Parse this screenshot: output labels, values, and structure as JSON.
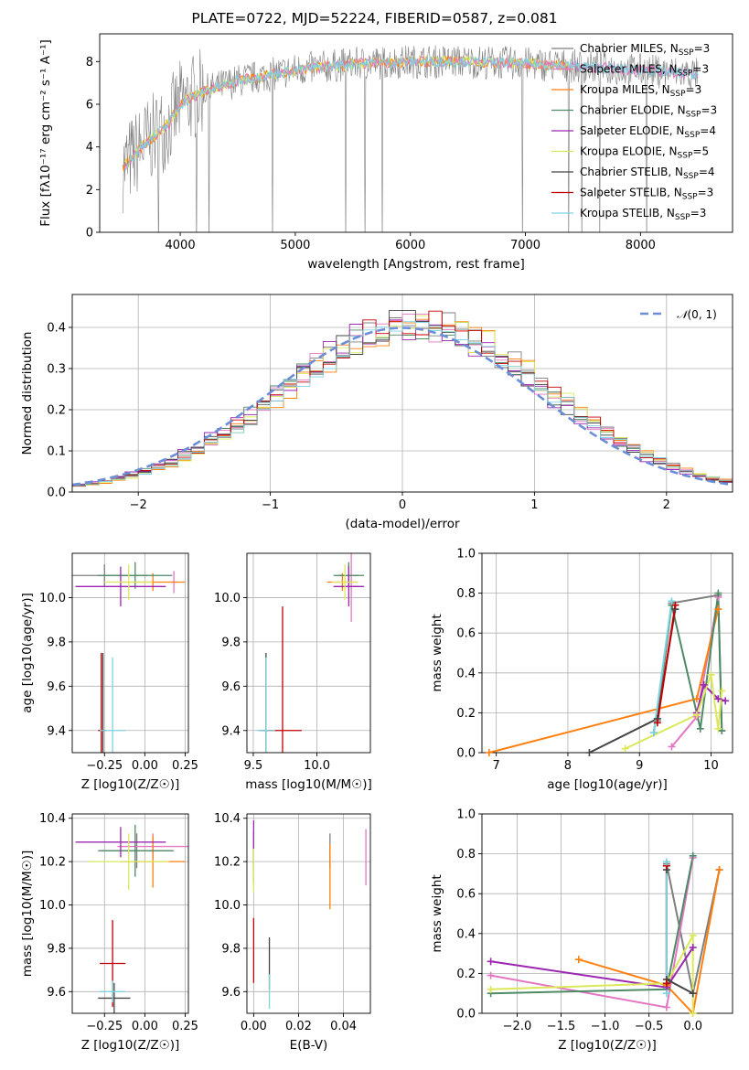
{
  "figure": {
    "title": "PLATE=0722, MJD=52224, FIBERID=0587, z=0.081",
    "models": [
      {
        "name": "Chabrier MILES",
        "nssp": "3",
        "color": "#7f7f7f"
      },
      {
        "name": "Salpeter MILES",
        "nssp": "3",
        "color": "#e377c2"
      },
      {
        "name": "Kroupa MILES",
        "nssp": "3",
        "color": "#ff7f0e"
      },
      {
        "name": "Chabrier ELODIE",
        "nssp": "3",
        "color": "#4e8a66"
      },
      {
        "name": "Salpeter ELODIE",
        "nssp": "4",
        "color": "#9b27b0"
      },
      {
        "name": "Kroupa ELODIE",
        "nssp": "5",
        "color": "#dbe85a"
      },
      {
        "name": "Chabrier STELIB",
        "nssp": "4",
        "color": "#454545"
      },
      {
        "name": "Salpeter STELIB",
        "nssp": "3",
        "color": "#c00000"
      },
      {
        "name": "Kroupa STELIB",
        "nssp": "3",
        "color": "#7ed3e0"
      }
    ]
  },
  "chart_data": [
    {
      "id": "spectrum",
      "type": "line",
      "xlabel": "wavelength [Angstrom, rest frame]",
      "ylabel": "Flux [fλ10⁻¹⁷ erg cm⁻² s⁻¹ A⁻¹]",
      "xlim": [
        3300,
        8800
      ],
      "ylim": [
        0,
        9.3
      ],
      "xticks": [
        "4000",
        "5000",
        "6000",
        "7000",
        "8000"
      ],
      "yticks": [
        "0",
        "2",
        "4",
        "6",
        "8"
      ],
      "legend": "right",
      "continuum": [
        [
          3500,
          3.0
        ],
        [
          3600,
          3.6
        ],
        [
          3700,
          4.2
        ],
        [
          3800,
          4.6
        ],
        [
          3900,
          5.1
        ],
        [
          4000,
          6.0
        ],
        [
          4200,
          6.6
        ],
        [
          4500,
          7.1
        ],
        [
          5000,
          7.6
        ],
        [
          5500,
          7.9
        ],
        [
          6000,
          8.0
        ],
        [
          6500,
          8.0
        ],
        [
          7000,
          7.9
        ],
        [
          7400,
          7.8
        ],
        [
          8000,
          7.6
        ],
        [
          8500,
          7.4
        ]
      ]
    },
    {
      "id": "residual-histogram",
      "type": "bar",
      "xlabel": "(data-model)/error",
      "ylabel": "Normed distribution",
      "xlim": [
        -2.5,
        2.5
      ],
      "ylim": [
        0,
        0.48
      ],
      "xticks": [
        "−2",
        "−1",
        "0",
        "1",
        "2"
      ],
      "yticks": [
        "0.0",
        "0.1",
        "0.2",
        "0.3",
        "0.4"
      ],
      "bin_width": 0.1,
      "reference": {
        "name": "N(0,1)",
        "mean": 0,
        "sigma": 1,
        "color": "#6c8ed8"
      },
      "legend": "top-right"
    },
    {
      "id": "age-vs-Z",
      "type": "scatter",
      "xlabel": "Z [log10(Z/Z☉)]",
      "ylabel": "age [log10(age/yr)]",
      "xlim": [
        -0.45,
        0.27
      ],
      "ylim": [
        9.3,
        10.2
      ],
      "xticks": [
        "−0.25",
        "0.00",
        "0.25"
      ],
      "yticks": [
        "9.4",
        "9.6",
        "9.8",
        "10.0"
      ],
      "points": [
        {
          "x": -0.25,
          "y": 10.1,
          "xerr": 0.27,
          "yerr": 0.05,
          "c": 0
        },
        {
          "x": 0.18,
          "y": 10.07,
          "xerr": 0.02,
          "yerr": 0.05,
          "c": 1
        },
        {
          "x": 0.05,
          "y": 10.07,
          "xerr": 0.2,
          "yerr": 0.04,
          "c": 2
        },
        {
          "x": -0.06,
          "y": 10.1,
          "xerr": 0.23,
          "yerr": 0.06,
          "c": 3
        },
        {
          "x": -0.15,
          "y": 10.05,
          "xerr": 0.28,
          "yerr": 0.09,
          "c": 4
        },
        {
          "x": -0.1,
          "y": 10.07,
          "xerr": 0.15,
          "yerr": 0.08,
          "c": 5
        },
        {
          "x": -0.26,
          "y": 9.4,
          "xerr": 0.02,
          "yerr": 0.35,
          "c": 6
        },
        {
          "x": -0.27,
          "y": 9.4,
          "xerr": 0.02,
          "yerr": 0.35,
          "c": 7
        },
        {
          "x": -0.2,
          "y": 9.4,
          "xerr": 0.08,
          "yerr": 0.33,
          "c": 8
        }
      ]
    },
    {
      "id": "age-vs-mass",
      "type": "scatter",
      "xlabel": "mass [log10(M/M☉)]",
      "ylabel": "",
      "xlim": [
        9.45,
        10.42
      ],
      "ylim": [
        9.3,
        10.2
      ],
      "xticks": [
        "9.5",
        "10.0"
      ],
      "yticks": [
        "9.4",
        "9.6",
        "9.8",
        "10.0"
      ],
      "points": [
        {
          "x": 10.25,
          "y": 10.1,
          "xerr": 0.08,
          "yerr": 0.05,
          "c": 0
        },
        {
          "x": 10.27,
          "y": 10.05,
          "xerr": 0.06,
          "yerr": 0.16,
          "c": 1
        },
        {
          "x": 10.2,
          "y": 10.07,
          "xerr": 0.12,
          "yerr": 0.04,
          "c": 2
        },
        {
          "x": 10.25,
          "y": 10.1,
          "xerr": 0.12,
          "yerr": 0.06,
          "c": 3
        },
        {
          "x": 10.25,
          "y": 10.05,
          "xerr": 0.12,
          "yerr": 0.09,
          "c": 4
        },
        {
          "x": 10.22,
          "y": 10.07,
          "xerr": 0.1,
          "yerr": 0.08,
          "c": 5
        },
        {
          "x": 9.6,
          "y": 9.4,
          "xerr": 0.05,
          "yerr": 0.35,
          "c": 6
        },
        {
          "x": 9.73,
          "y": 9.4,
          "xerr": 0.15,
          "yerr": 0.56,
          "c": 7
        },
        {
          "x": 9.6,
          "y": 9.4,
          "xerr": 0.07,
          "yerr": 0.33,
          "c": 8
        }
      ]
    },
    {
      "id": "mass-weight-vs-age",
      "type": "line",
      "xlabel": "age [log10(age/yr)]",
      "ylabel": "mass weight",
      "xlim": [
        6.8,
        10.3
      ],
      "ylim": [
        0,
        1.0
      ],
      "xticks": [
        "7",
        "8",
        "9",
        "10"
      ],
      "yticks": [
        "0.0",
        "0.2",
        "0.4",
        "0.6",
        "0.8",
        "1.0"
      ],
      "series": [
        {
          "c": 0,
          "x": [
            9.25,
            9.45,
            10.1,
            10.15
          ],
          "y": [
            0.16,
            0.75,
            0.79,
            0.11
          ]
        },
        {
          "c": 1,
          "x": [
            9.45,
            9.8,
            10.1
          ],
          "y": [
            0.03,
            0.18,
            0.78
          ]
        },
        {
          "c": 2,
          "x": [
            6.9,
            9.8,
            10.1
          ],
          "y": [
            0.0,
            0.27,
            0.72
          ]
        },
        {
          "c": 3,
          "x": [
            9.2,
            9.45,
            9.85,
            10.1,
            10.15
          ],
          "y": [
            0.1,
            0.74,
            0.12,
            0.8,
            0.11
          ]
        },
        {
          "c": 4,
          "x": [
            9.8,
            9.9,
            10.1,
            10.2
          ],
          "y": [
            0.2,
            0.34,
            0.27,
            0.26
          ]
        },
        {
          "c": 5,
          "x": [
            8.8,
            9.8,
            10.0,
            10.1,
            10.15
          ],
          "y": [
            0.02,
            0.19,
            0.39,
            0.12,
            0.31
          ]
        },
        {
          "c": 6,
          "x": [
            8.3,
            9.25,
            9.5
          ],
          "y": [
            0.0,
            0.17,
            0.72
          ]
        },
        {
          "c": 7,
          "x": [
            9.25,
            9.5
          ],
          "y": [
            0.15,
            0.74
          ]
        },
        {
          "c": 8,
          "x": [
            9.2,
            9.45
          ],
          "y": [
            0.1,
            0.76
          ]
        }
      ]
    },
    {
      "id": "mass-vs-Z",
      "type": "scatter",
      "xlabel": "Z [log10(Z/Z☉)]",
      "ylabel": "mass [log10(M/M☉)]",
      "xlim": [
        -0.45,
        0.27
      ],
      "ylim": [
        9.5,
        10.42
      ],
      "xticks": [
        "−0.25",
        "0.00",
        "0.25"
      ],
      "yticks": [
        "9.6",
        "9.8",
        "10.0",
        "10.2",
        "10.4"
      ],
      "points": [
        {
          "x": -0.05,
          "y": 10.25,
          "xerr": 0.23,
          "yerr": 0.08,
          "c": 0
        },
        {
          "x": 0.05,
          "y": 10.27,
          "xerr": 0.22,
          "yerr": 0.06,
          "c": 1
        },
        {
          "x": 0.05,
          "y": 10.2,
          "xerr": 0.2,
          "yerr": 0.12,
          "c": 2
        },
        {
          "x": -0.06,
          "y": 10.25,
          "xerr": 0.23,
          "yerr": 0.12,
          "c": 3
        },
        {
          "x": -0.15,
          "y": 10.29,
          "xerr": 0.28,
          "yerr": 0.07,
          "c": 4
        },
        {
          "x": -0.1,
          "y": 10.2,
          "xerr": 0.25,
          "yerr": 0.13,
          "c": 5
        },
        {
          "x": -0.19,
          "y": 9.57,
          "xerr": 0.1,
          "yerr": 0.07,
          "c": 6
        },
        {
          "x": -0.2,
          "y": 9.73,
          "xerr": 0.08,
          "yerr": 0.2,
          "c": 7
        },
        {
          "x": -0.2,
          "y": 9.6,
          "xerr": 0.08,
          "yerr": 0.05,
          "c": 8
        }
      ]
    },
    {
      "id": "mass-vs-ebv",
      "type": "scatter",
      "xlabel": "E(B-V)",
      "ylabel": "",
      "xlim": [
        -0.003,
        0.052
      ],
      "ylim": [
        9.5,
        10.42
      ],
      "xticks": [
        "0.00",
        "0.02",
        "0.04"
      ],
      "yticks": [
        "9.6",
        "9.8",
        "10.0",
        "10.2",
        "10.4"
      ],
      "points": [
        {
          "x": 0.034,
          "y": 10.25,
          "xerr": 0,
          "yerr": 0.08,
          "c": 0
        },
        {
          "x": 0.05,
          "y": 10.22,
          "xerr": 0,
          "yerr": 0.13,
          "c": 1
        },
        {
          "x": 0.034,
          "y": 10.13,
          "xerr": 0,
          "yerr": 0.15,
          "c": 2
        },
        {
          "x": 0.0,
          "y": 10.22,
          "xerr": 0,
          "yerr": 0.12,
          "c": 3
        },
        {
          "x": 0.0,
          "y": 10.29,
          "xerr": 0,
          "yerr": 0.1,
          "c": 4
        },
        {
          "x": 0.0,
          "y": 10.16,
          "xerr": 0,
          "yerr": 0.1,
          "c": 5
        },
        {
          "x": 0.007,
          "y": 9.73,
          "xerr": 0,
          "yerr": 0.12,
          "c": 6
        },
        {
          "x": 0.0,
          "y": 9.79,
          "xerr": 0,
          "yerr": 0.15,
          "c": 7
        },
        {
          "x": 0.007,
          "y": 9.6,
          "xerr": 0,
          "yerr": 0.08,
          "c": 8
        }
      ]
    },
    {
      "id": "mass-weight-vs-Z",
      "type": "line",
      "xlabel": "Z [log10(Z/Z☉)]",
      "ylabel": "mass weight",
      "xlim": [
        -2.4,
        0.45
      ],
      "ylim": [
        0,
        1.0
      ],
      "xticks": [
        "−2.0",
        "−1.5",
        "−1.0",
        "−0.5",
        "0.0"
      ],
      "yticks": [
        "0.0",
        "0.2",
        "0.4",
        "0.6",
        "0.8",
        "1.0"
      ],
      "series": [
        {
          "c": 0,
          "x": [
            -0.3,
            0.0,
            0.3
          ],
          "y": [
            0.75,
            0.1,
            0.72
          ]
        },
        {
          "c": 1,
          "x": [
            -2.3,
            -0.3,
            0.0
          ],
          "y": [
            0.19,
            0.03,
            0.78
          ]
        },
        {
          "c": 2,
          "x": [
            -1.3,
            -0.3,
            0.0,
            0.3
          ],
          "y": [
            0.27,
            0.14,
            0.0,
            0.72
          ]
        },
        {
          "c": 3,
          "x": [
            -2.3,
            -0.3,
            0.0
          ],
          "y": [
            0.1,
            0.12,
            0.79
          ]
        },
        {
          "c": 4,
          "x": [
            -2.3,
            -0.3,
            0.0
          ],
          "y": [
            0.26,
            0.13,
            0.33
          ]
        },
        {
          "c": 5,
          "x": [
            -2.3,
            -0.3,
            0.0,
            0.0
          ],
          "y": [
            0.12,
            0.15,
            0.39,
            0.0
          ]
        },
        {
          "c": 6,
          "x": [
            -0.3,
            -0.3,
            0.0
          ],
          "y": [
            0.72,
            0.17,
            0.1
          ]
        },
        {
          "c": 7,
          "x": [
            -0.3,
            -0.3
          ],
          "y": [
            0.15,
            0.74
          ]
        },
        {
          "c": 8,
          "x": [
            -0.3,
            -0.3
          ],
          "y": [
            0.1,
            0.76
          ]
        }
      ]
    }
  ]
}
